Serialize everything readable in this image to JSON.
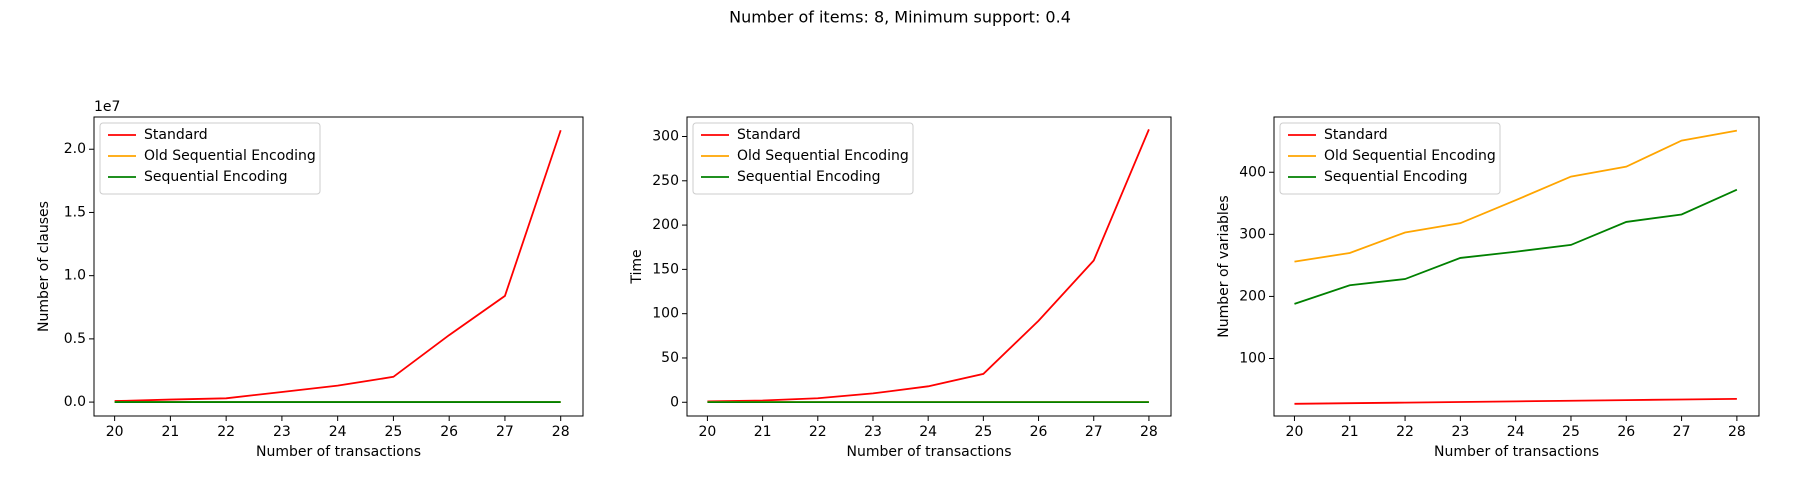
{
  "title": "Number of items: 8, Minimum support: 0.4",
  "chart_data": [
    {
      "type": "line",
      "x_label": "Number of transactions",
      "y_label": "Number of clauses",
      "y_offset_label": "1e7",
      "x": [
        20,
        21,
        22,
        23,
        24,
        25,
        26,
        27,
        28
      ],
      "series": [
        {
          "name": "Standard",
          "color": "#ff0000",
          "values": [
            0.008,
            0.02,
            0.03,
            0.08,
            0.13,
            0.2,
            0.53,
            0.84,
            2.15
          ]
        },
        {
          "name": "Old Sequential Encoding",
          "color": "#ffa500",
          "values": [
            0.0002,
            0.0002,
            0.0002,
            0.0002,
            0.0002,
            0.0002,
            0.0002,
            0.0002,
            0.0002
          ]
        },
        {
          "name": "Sequential Encoding",
          "color": "#008000",
          "values": [
            0.0001,
            0.0001,
            0.0001,
            0.0001,
            0.0001,
            0.0001,
            0.0001,
            0.0001,
            0.0001
          ]
        }
      ],
      "xlim": [
        19.63,
        28.4
      ],
      "xticks": [
        20,
        21,
        22,
        23,
        24,
        25,
        26,
        27,
        28
      ],
      "ylim": [
        -0.11,
        2.255
      ],
      "yticks": [
        {
          "value": 0,
          "label": "0.0"
        },
        0.5,
        {
          "value": 1,
          "label": "1.0"
        },
        1.5,
        {
          "value": 2,
          "label": "2.0"
        }
      ],
      "legend": "upper left"
    },
    {
      "type": "line",
      "x_label": "Number of transactions",
      "y_label": "Time",
      "x": [
        20,
        21,
        22,
        23,
        24,
        25,
        26,
        27,
        28
      ],
      "series": [
        {
          "name": "Standard",
          "color": "#ff0000",
          "values": [
            1,
            2,
            4.5,
            10,
            18,
            32,
            92,
            160,
            308
          ]
        },
        {
          "name": "Old Sequential Encoding",
          "color": "#ffa500",
          "values": [
            0.3,
            0.3,
            0.3,
            0.3,
            0.3,
            0.3,
            0.3,
            0.3,
            0.3
          ]
        },
        {
          "name": "Sequential Encoding",
          "color": "#008000",
          "values": [
            0.2,
            0.2,
            0.2,
            0.2,
            0.2,
            0.2,
            0.2,
            0.2,
            0.2
          ]
        }
      ],
      "xlim": [
        19.63,
        28.4
      ],
      "xticks": [
        20,
        21,
        22,
        23,
        24,
        25,
        26,
        27,
        28
      ],
      "ylim": [
        -15.5,
        322
      ],
      "yticks": [
        0,
        50,
        100,
        150,
        200,
        250,
        300
      ],
      "legend": "upper left"
    },
    {
      "type": "line",
      "x_label": "Number of transactions",
      "y_label": "Number of variables",
      "x": [
        20,
        21,
        22,
        23,
        24,
        25,
        26,
        27,
        28
      ],
      "series": [
        {
          "name": "Standard",
          "color": "#ff0000",
          "values": [
            27,
            28,
            29,
            30,
            31,
            32,
            33,
            34,
            35
          ]
        },
        {
          "name": "Old Sequential Encoding",
          "color": "#ffa500",
          "values": [
            256,
            270,
            303,
            318,
            355,
            393,
            409,
            451,
            467
          ]
        },
        {
          "name": "Sequential Encoding",
          "color": "#008000",
          "values": [
            188,
            218,
            228,
            262,
            272,
            283,
            320,
            332,
            372
          ]
        }
      ],
      "xlim": [
        19.63,
        28.4
      ],
      "xticks": [
        20,
        21,
        22,
        23,
        24,
        25,
        26,
        27,
        28
      ],
      "ylim": [
        7.4,
        489
      ],
      "yticks": [
        100,
        200,
        300,
        400
      ],
      "legend": "upper left"
    }
  ]
}
